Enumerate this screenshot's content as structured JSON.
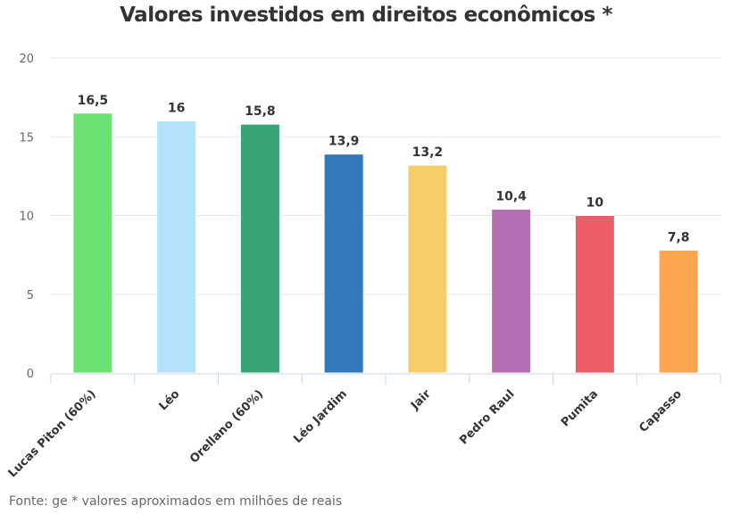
{
  "chart_data": {
    "type": "bar",
    "title": "Valores investidos em direitos econômicos *",
    "xlabel": "",
    "ylabel": "",
    "ylim": [
      0,
      20
    ],
    "yticks": [
      0,
      5,
      10,
      15,
      20
    ],
    "grid": true,
    "legend": "none",
    "categories": [
      "Lucas Piton (60%)",
      "Léo",
      "Orellano (60%)",
      "Léo Jardim",
      "Jair",
      "Pedro Raul",
      "Pumita",
      "Capasso"
    ],
    "values": [
      16.5,
      16,
      15.8,
      13.9,
      13.2,
      10.4,
      10,
      7.8
    ],
    "data_labels": [
      "16,5",
      "16",
      "15,8",
      "13,9",
      "13,2",
      "10,4",
      "10",
      "7,8"
    ],
    "colors": [
      "#6ce072",
      "#b5e2fa",
      "#38a376",
      "#3278bd",
      "#f5ce6a",
      "#b570b5",
      "#eb5e68",
      "#fda54f"
    ],
    "footer": "Fonte: ge * valores aproximados em milhões de reais"
  }
}
